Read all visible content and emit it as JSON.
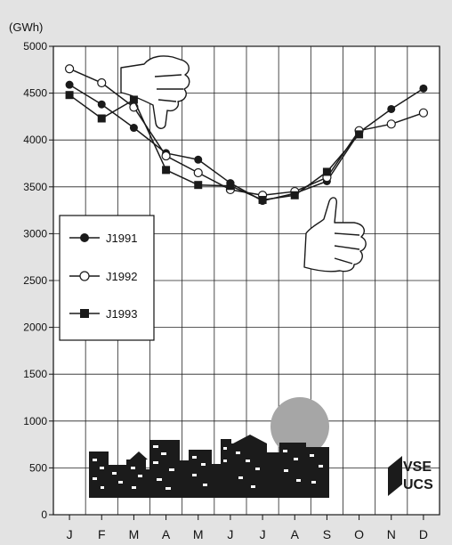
{
  "chart_data": {
    "type": "line",
    "title": "",
    "unit_label": "(GWh)",
    "xlabel": "",
    "ylabel": "",
    "categories": [
      "J",
      "F",
      "M",
      "A",
      "M",
      "J",
      "J",
      "A",
      "S",
      "O",
      "N",
      "D"
    ],
    "ylim": [
      0,
      5000
    ],
    "yticks": [
      0,
      500,
      1000,
      1500,
      2000,
      2500,
      3000,
      3500,
      4000,
      4500,
      5000
    ],
    "grid": true,
    "legend_position": "left-middle",
    "series": [
      {
        "name": "J1991",
        "marker": "filled-circle",
        "values": [
          4590,
          4380,
          4130,
          3860,
          3790,
          3540,
          3350,
          3430,
          3560,
          4080,
          4330,
          4550
        ]
      },
      {
        "name": "J1992",
        "marker": "open-circle",
        "values": [
          4760,
          4610,
          4350,
          3830,
          3650,
          3470,
          3410,
          3450,
          3600,
          4100,
          4170,
          4290
        ]
      },
      {
        "name": "J1993",
        "marker": "filled-square",
        "values": [
          4480,
          4230,
          4430,
          3680,
          3520,
          3510,
          3360,
          3410,
          3660,
          4060,
          null,
          null
        ]
      }
    ]
  },
  "decorations": {
    "logo_text": [
      "VSE",
      "UCS"
    ],
    "sun_icon": "sun",
    "skyline_icon": "city-skyline",
    "thumbs_down_icon": "thumbs-down-hand",
    "thumbs_up_icon": "thumbs-up-hand",
    "colors": {
      "background": "#e3e3e3",
      "plot": "#ffffff",
      "line": "#1a1a1a",
      "sun": "#a6a6a6"
    }
  }
}
